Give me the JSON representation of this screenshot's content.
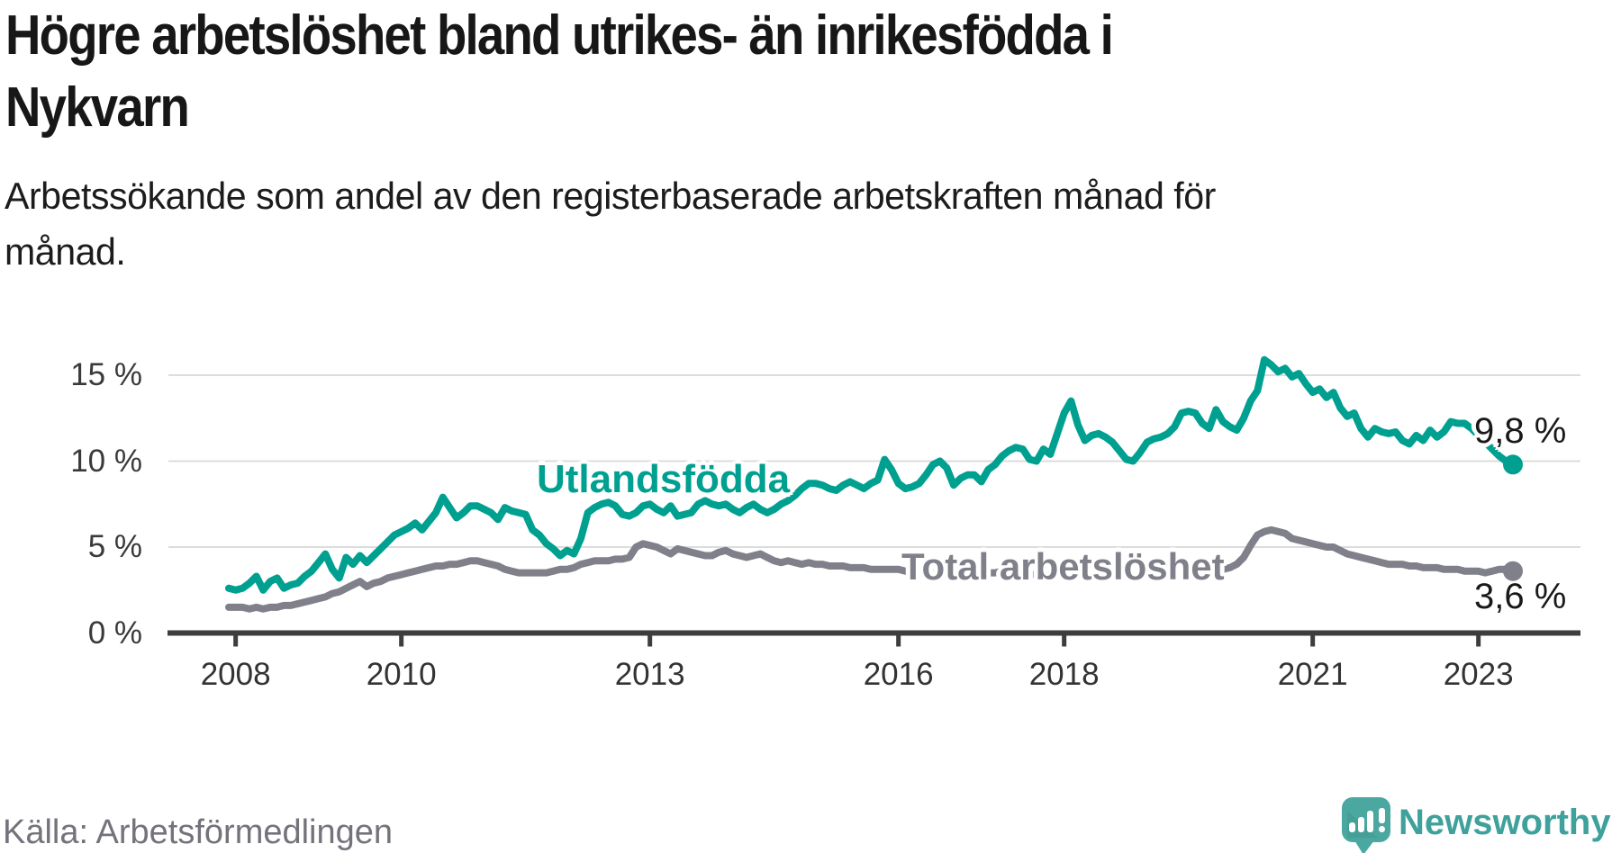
{
  "header": {
    "title_line1": "Högre arbetslöshet bland utrikes- än inrikesfödda i",
    "title_line2": "Nykvarn",
    "subtitle_line1": "Arbetssökande som andel av den registerbaserade arbetskraften månad för",
    "subtitle_line2": "månad."
  },
  "footer": {
    "source": "Källa: Arbetsförmedlingen",
    "brand": "Newsworthy",
    "logo_icon": "chart-bars-speech-bubble-icon"
  },
  "colors": {
    "accent_teal": "#00a091",
    "line_gray": "#80808a",
    "grid": "#dcdcdc",
    "axis": "#3d3d3d",
    "tick_text": "#333333",
    "title_text": "#171717",
    "source_text": "#73737c",
    "logo_teal": "#4ba8a1",
    "brand_text": "#3fa19b",
    "end_label_text": "#191919"
  },
  "chart_data": {
    "type": "line",
    "title": "Högre arbetslöshet bland utrikes- än inrikesfödda i Nykvarn",
    "subtitle": "Arbetssökande som andel av den registerbaserade arbetskraften månad för månad.",
    "xlabel": "",
    "ylabel": "",
    "grid": "horizontal",
    "legend_position": "inline-labels",
    "x_unit": "month",
    "x_start": "2007-12",
    "x_end": "2023-06",
    "xlim": [
      2007.9,
      2024.2
    ],
    "ylim": [
      0,
      16.8
    ],
    "y_ticks": [
      {
        "label": "15 %",
        "value": 15
      },
      {
        "label": "10 %",
        "value": 10
      },
      {
        "label": "5 %",
        "value": 5
      },
      {
        "label": "0 %",
        "value": 0
      }
    ],
    "x_ticks": [
      {
        "label": "2008",
        "year": 2008
      },
      {
        "label": "2010",
        "year": 2010
      },
      {
        "label": "2013",
        "year": 2013
      },
      {
        "label": "2016",
        "year": 2016
      },
      {
        "label": "2018",
        "year": 2018
      },
      {
        "label": "2021",
        "year": 2021
      },
      {
        "label": "2023",
        "year": 2023
      }
    ],
    "series": [
      {
        "id": "utlandsfodda",
        "name": "Utlandsfödda",
        "color": "#00a091",
        "end_label": "9,8 %",
        "end_value": 9.8,
        "values": [
          2.6,
          2.5,
          2.6,
          2.9,
          3.3,
          2.5,
          3.0,
          3.2,
          2.6,
          2.8,
          2.9,
          3.3,
          3.6,
          4.1,
          4.6,
          3.7,
          3.2,
          4.4,
          4.0,
          4.5,
          4.1,
          4.5,
          4.9,
          5.3,
          5.7,
          5.9,
          6.1,
          6.4,
          6.0,
          6.5,
          7.0,
          7.9,
          7.3,
          6.7,
          7.0,
          7.4,
          7.4,
          7.2,
          7.0,
          6.6,
          7.3,
          7.1,
          7.0,
          6.9,
          6.0,
          5.7,
          5.2,
          4.9,
          4.5,
          4.8,
          4.6,
          5.5,
          7.0,
          7.3,
          7.5,
          7.6,
          7.4,
          6.9,
          6.8,
          7.0,
          7.4,
          7.5,
          7.2,
          7.0,
          7.4,
          6.8,
          6.9,
          7.0,
          7.5,
          7.7,
          7.5,
          7.4,
          7.5,
          7.2,
          7.0,
          7.3,
          7.5,
          7.2,
          7.0,
          7.2,
          7.5,
          7.7,
          8.0,
          8.4,
          8.7,
          8.7,
          8.6,
          8.4,
          8.3,
          8.6,
          8.8,
          8.6,
          8.4,
          8.7,
          8.9,
          10.1,
          9.5,
          8.7,
          8.4,
          8.5,
          8.7,
          9.2,
          9.8,
          10.0,
          9.6,
          8.6,
          9.0,
          9.2,
          9.2,
          8.8,
          9.5,
          9.8,
          10.3,
          10.6,
          10.8,
          10.7,
          10.1,
          10.0,
          10.7,
          10.4,
          11.6,
          12.8,
          13.5,
          12.1,
          11.2,
          11.5,
          11.6,
          11.4,
          11.1,
          10.6,
          10.1,
          10.0,
          10.5,
          11.1,
          11.3,
          11.4,
          11.6,
          12.0,
          12.8,
          12.9,
          12.8,
          12.2,
          11.9,
          13.0,
          12.3,
          12.0,
          11.8,
          12.5,
          13.5,
          14.1,
          15.9,
          15.6,
          15.2,
          15.4,
          14.9,
          15.1,
          14.5,
          14.0,
          14.2,
          13.7,
          14.0,
          13.1,
          12.6,
          12.8,
          11.9,
          11.4,
          11.9,
          11.7,
          11.6,
          11.7,
          11.2,
          11.0,
          11.5,
          11.2,
          11.8,
          11.4,
          11.7,
          12.3,
          12.2,
          12.2,
          11.9,
          11.5,
          11.1,
          10.7,
          10.3,
          10.0,
          9.8
        ]
      },
      {
        "id": "total",
        "name": "Total arbetslöshet",
        "color": "#80808a",
        "end_label": "3,6 %",
        "end_value": 3.6,
        "values": [
          1.5,
          1.5,
          1.5,
          1.4,
          1.5,
          1.4,
          1.5,
          1.5,
          1.6,
          1.6,
          1.7,
          1.8,
          1.9,
          2.0,
          2.1,
          2.3,
          2.4,
          2.6,
          2.8,
          3.0,
          2.7,
          2.9,
          3.0,
          3.2,
          3.3,
          3.4,
          3.5,
          3.6,
          3.7,
          3.8,
          3.9,
          3.9,
          4.0,
          4.0,
          4.1,
          4.2,
          4.2,
          4.1,
          4.0,
          3.9,
          3.7,
          3.6,
          3.5,
          3.5,
          3.5,
          3.5,
          3.5,
          3.6,
          3.7,
          3.7,
          3.8,
          4.0,
          4.1,
          4.2,
          4.2,
          4.2,
          4.3,
          4.3,
          4.4,
          5.0,
          5.2,
          5.1,
          5.0,
          4.8,
          4.6,
          4.9,
          4.8,
          4.7,
          4.6,
          4.5,
          4.5,
          4.7,
          4.8,
          4.6,
          4.5,
          4.4,
          4.5,
          4.6,
          4.4,
          4.2,
          4.1,
          4.2,
          4.1,
          4.0,
          4.1,
          4.0,
          4.0,
          3.9,
          3.9,
          3.9,
          3.8,
          3.8,
          3.8,
          3.7,
          3.7,
          3.7,
          3.7,
          3.7,
          3.6,
          3.6,
          3.7,
          3.6,
          3.5,
          3.5,
          3.6,
          3.6,
          3.5,
          3.5,
          3.6,
          3.6,
          3.5,
          3.5,
          3.6,
          3.5,
          3.4,
          3.5,
          3.4,
          3.4,
          3.5,
          3.4,
          3.4,
          3.4,
          3.3,
          3.4,
          3.3,
          3.3,
          3.4,
          3.3,
          3.3,
          3.4,
          3.3,
          3.4,
          3.4,
          3.4,
          3.4,
          3.5,
          3.4,
          3.5,
          3.5,
          3.6,
          3.5,
          3.5,
          3.6,
          3.6,
          3.7,
          3.8,
          4.0,
          4.4,
          5.1,
          5.7,
          5.9,
          6.0,
          5.9,
          5.8,
          5.5,
          5.4,
          5.3,
          5.2,
          5.1,
          5.0,
          5.0,
          4.8,
          4.6,
          4.5,
          4.4,
          4.3,
          4.2,
          4.1,
          4.0,
          4.0,
          4.0,
          3.9,
          3.9,
          3.8,
          3.8,
          3.8,
          3.7,
          3.7,
          3.7,
          3.6,
          3.6,
          3.6,
          3.5,
          3.6,
          3.7,
          3.7,
          3.6
        ]
      }
    ]
  }
}
